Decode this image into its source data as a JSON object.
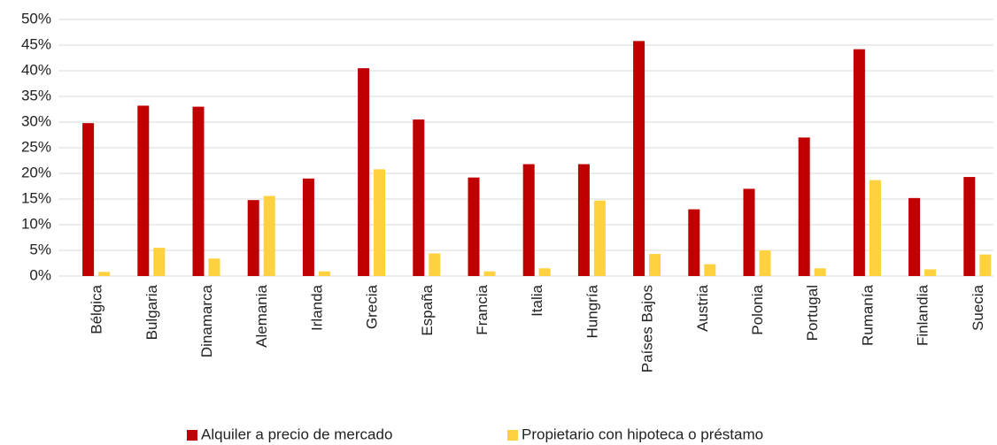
{
  "chart_data": {
    "type": "bar",
    "categories": [
      "Bélgica",
      "Bulgaria",
      "Dinamarca",
      "Alemania",
      "Irlanda",
      "Grecia",
      "España",
      "Francia",
      "Italia",
      "Hungría",
      "Países Bajos",
      "Austria",
      "Polonia",
      "Portugal",
      "Rumanía",
      "Finlandia",
      "Suecia"
    ],
    "series": [
      {
        "name": "Alquiler a precio de mercado",
        "color": "#c00000",
        "values": [
          29.8,
          33.2,
          33.0,
          14.8,
          19.0,
          40.5,
          30.5,
          19.2,
          21.8,
          21.8,
          45.8,
          13.0,
          17.0,
          27.0,
          44.2,
          15.2,
          19.3
        ]
      },
      {
        "name": "Propietario con hipoteca o préstamo",
        "color": "#ffd13f",
        "values": [
          0.8,
          5.5,
          3.4,
          15.6,
          0.9,
          20.8,
          4.4,
          0.9,
          1.5,
          14.7,
          4.3,
          2.3,
          5.0,
          1.5,
          18.7,
          1.3,
          4.2
        ]
      }
    ],
    "ylim": [
      0,
      50
    ],
    "yticks": [
      {
        "value": 0,
        "label": "0%"
      },
      {
        "value": 5,
        "label": "5%"
      },
      {
        "value": 10,
        "label": "10%"
      },
      {
        "value": 15,
        "label": "15%"
      },
      {
        "value": 20,
        "label": "20%"
      },
      {
        "value": 25,
        "label": "25%"
      },
      {
        "value": 30,
        "label": "30%"
      },
      {
        "value": 35,
        "label": "35%"
      },
      {
        "value": 40,
        "label": "40%"
      },
      {
        "value": 45,
        "label": "45%"
      },
      {
        "value": 50,
        "label": "50%"
      }
    ],
    "grid": true,
    "legend": "bottom"
  }
}
